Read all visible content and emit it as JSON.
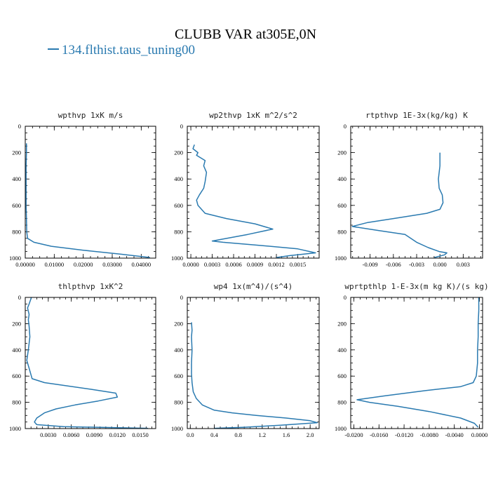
{
  "figure": {
    "title": "CLUBB VAR at305E,0N",
    "legend": {
      "label": "134.flthist.taus_tuning00",
      "color": "#2a7ab0"
    }
  },
  "chart_data": [
    {
      "type": "line",
      "title": "wpthvp   1xK m/s",
      "xlim": [
        0,
        0.045
      ],
      "ylim": [
        1000,
        0
      ],
      "xticks": [
        0,
        0.01,
        0.02,
        0.03,
        0.04
      ],
      "xtick_labels": [
        "0.00000",
        "0.01000",
        "0.02000",
        "0.03000",
        "0.04000"
      ],
      "yticks": [
        0,
        200,
        400,
        600,
        800,
        1000
      ],
      "ytick_labels": [
        "0",
        "200",
        "400",
        "600",
        "800",
        "1000"
      ],
      "series": [
        {
          "values_x": [
            0.0004,
            0.0004,
            0.0003,
            0.0003,
            0.0003,
            0.0003,
            0.0004,
            0.0005,
            0.0008,
            0.003,
            0.009,
            0.02,
            0.033,
            0.043
          ],
          "values_y": [
            130,
            200,
            300,
            400,
            500,
            600,
            700,
            800,
            850,
            880,
            910,
            940,
            970,
            995
          ]
        }
      ]
    },
    {
      "type": "line",
      "title": "wp2thvp   1xK m^2/s^2",
      "xlim": [
        -5e-05,
        0.0018
      ],
      "ylim": [
        1000,
        0
      ],
      "xticks": [
        0,
        0.0003,
        0.0006,
        0.0009,
        0.0012,
        0.0015
      ],
      "xtick_labels": [
        "0.0000",
        "0.0003",
        "0.0006",
        "0.0009",
        "0.0012",
        "0.0015"
      ],
      "yticks": [
        0,
        200,
        400,
        600,
        800,
        1000
      ],
      "ytick_labels": [
        "0",
        "200",
        "400",
        "600",
        "800",
        "1000"
      ],
      "series": [
        {
          "values_x": [
            5e-05,
            3e-05,
            0.0001,
            8e-05,
            0.0002,
            0.00018,
            0.00022,
            0.0002,
            0.00018,
            0.00012,
            8e-05,
            0.0001,
            0.0002,
            0.0005,
            0.0009,
            0.00115,
            0.0008,
            0.0004,
            0.0003,
            0.00045,
            0.0009,
            0.0015,
            0.00175,
            0.0014,
            0.0012
          ],
          "values_y": [
            140,
            170,
            200,
            220,
            260,
            300,
            350,
            420,
            470,
            520,
            560,
            600,
            660,
            700,
            740,
            780,
            820,
            860,
            870,
            880,
            900,
            930,
            960,
            980,
            995
          ]
        }
      ]
    },
    {
      "type": "line",
      "title": "rtpthvp   1E-3x(kg/kg) K",
      "xlim": [
        -0.0115,
        0.0055
      ],
      "ylim": [
        1000,
        0
      ],
      "xticks": [
        -0.009,
        -0.006,
        -0.003,
        0.0,
        0.003
      ],
      "xtick_labels": [
        "-0.009",
        "-0.006",
        "-0.003",
        "0.000",
        "0.003"
      ],
      "yticks": [
        0,
        200,
        400,
        600,
        800,
        1000
      ],
      "ytick_labels": [
        "0",
        "200",
        "400",
        "600",
        "800",
        "1000"
      ],
      "series": [
        {
          "values_x": [
            0.0,
            0.0,
            -0.0002,
            -0.0001,
            0.0003,
            0.0004,
            0.0,
            -0.0017,
            -0.006,
            -0.0093,
            -0.0113,
            -0.008,
            -0.0045,
            -0.003,
            -0.0015,
            -0.0001,
            0.0009,
            0.0006,
            -0.0007
          ],
          "values_y": [
            200,
            300,
            400,
            470,
            520,
            580,
            630,
            660,
            700,
            730,
            760,
            790,
            820,
            880,
            920,
            950,
            960,
            975,
            995
          ]
        }
      ]
    },
    {
      "type": "line",
      "title": "thlpthvp   1xK^2",
      "xlim": [
        0.0,
        0.017
      ],
      "ylim": [
        1000,
        0
      ],
      "xticks": [
        0.003,
        0.006,
        0.009,
        0.012,
        0.015
      ],
      "xtick_labels": [
        "0.0030",
        "0.0060",
        "0.0090",
        "0.0120",
        "0.0150"
      ],
      "yticks": [
        0,
        200,
        400,
        600,
        800,
        1000
      ],
      "ytick_labels": [
        "0",
        "200",
        "400",
        "600",
        "800",
        "1000"
      ],
      "series": [
        {
          "values_x": [
            0.0008,
            0.0005,
            0.0003,
            0.0005,
            0.0004,
            0.0005,
            0.0006,
            0.0004,
            0.0002,
            0.0005,
            0.0009,
            0.0025,
            0.0085,
            0.0118,
            0.012,
            0.0095,
            0.0065,
            0.004,
            0.0025,
            0.0015,
            0.0012,
            0.0015,
            0.005,
            0.011,
            0.016
          ],
          "values_y": [
            0,
            50,
            80,
            130,
            170,
            220,
            300,
            400,
            480,
            540,
            620,
            650,
            700,
            730,
            760,
            790,
            820,
            850,
            880,
            920,
            950,
            970,
            985,
            992,
            998
          ]
        }
      ]
    },
    {
      "type": "line",
      "title": "wp4   1x(m^4)/(s^4)",
      "xlim": [
        -0.05,
        2.15
      ],
      "ylim": [
        1000,
        0
      ],
      "xticks": [
        0.0,
        0.4,
        0.8,
        1.2,
        1.6,
        2.0
      ],
      "xtick_labels": [
        "0.0",
        "0.4",
        "0.8",
        "1.2",
        "1.6",
        "2.0"
      ],
      "yticks": [
        0,
        200,
        400,
        600,
        800,
        1000
      ],
      "ytick_labels": [
        "0",
        "200",
        "400",
        "600",
        "800",
        "1000"
      ],
      "series": [
        {
          "values_x": [
            0.02,
            0.03,
            0.02,
            0.03,
            0.02,
            0.02,
            0.03,
            0.05,
            0.1,
            0.2,
            0.4,
            0.7,
            1.1,
            1.6,
            2.0,
            2.12,
            1.5,
            0.9,
            0.4
          ],
          "values_y": [
            190,
            250,
            300,
            400,
            500,
            580,
            650,
            720,
            770,
            820,
            860,
            880,
            900,
            920,
            940,
            955,
            975,
            990,
            998
          ]
        }
      ]
    },
    {
      "type": "line",
      "title": "wprtpthlp   1-E-3x(m kg K)/(s kg)",
      "xlim": [
        -0.0205,
        0.0005
      ],
      "ylim": [
        1000,
        0
      ],
      "xticks": [
        -0.02,
        -0.016,
        -0.012,
        -0.008,
        -0.004,
        0.0
      ],
      "xtick_labels": [
        "-0.0200",
        "-0.0160",
        "-0.0120",
        "-0.0080",
        "-0.0040",
        "0.0000"
      ],
      "yticks": [
        0,
        200,
        400,
        600,
        800,
        1000
      ],
      "ytick_labels": [
        "0",
        "200",
        "400",
        "600",
        "800",
        "1000"
      ],
      "series": [
        {
          "values_x": [
            -0.0001,
            -0.0001,
            -0.0002,
            -0.0002,
            -0.0003,
            -0.0003,
            -0.0005,
            -0.001,
            -0.003,
            -0.0085,
            -0.015,
            -0.0195,
            -0.0175,
            -0.013,
            -0.008,
            -0.003,
            -0.0008,
            -0.0002
          ],
          "values_y": [
            0,
            100,
            200,
            300,
            400,
            500,
            600,
            650,
            680,
            710,
            750,
            780,
            800,
            830,
            870,
            920,
            960,
            990
          ]
        }
      ]
    }
  ]
}
